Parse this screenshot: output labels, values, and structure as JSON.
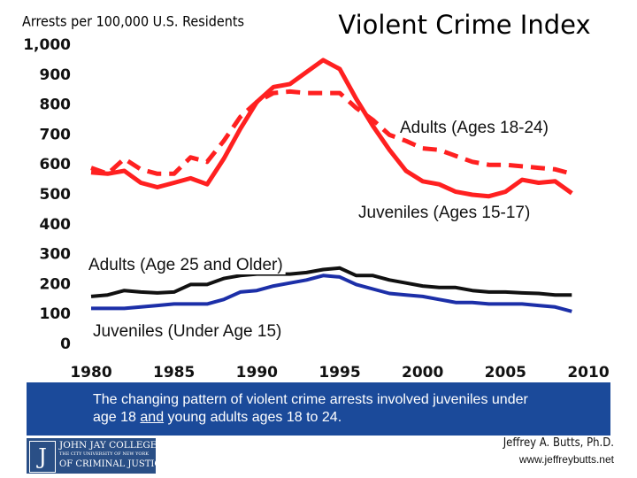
{
  "chart_data": {
    "type": "line",
    "title": "Violent Crime Index",
    "y_label": "Arrests per 100,000 U.S. Residents",
    "x": [
      1980,
      1981,
      1982,
      1983,
      1984,
      1985,
      1986,
      1987,
      1988,
      1989,
      1990,
      1991,
      1992,
      1993,
      1994,
      1995,
      1996,
      1997,
      1998,
      1999,
      2000,
      2001,
      2002,
      2003,
      2004,
      2005,
      2006,
      2007,
      2008,
      2009
    ],
    "xlim": [
      1980,
      2010
    ],
    "xticks": [
      1980,
      1985,
      1990,
      1995,
      2000,
      2005,
      2010
    ],
    "ylim": [
      0,
      1000
    ],
    "yticks": [
      0,
      100,
      200,
      300,
      400,
      500,
      600,
      700,
      800,
      900,
      {
        "value": 1000,
        "label": "1,000"
      }
    ],
    "series": [
      {
        "name": "Juveniles (Ages 15-17)",
        "color": "#ff2020",
        "dashed": false,
        "values": [
          575,
          570,
          580,
          540,
          525,
          540,
          555,
          535,
          620,
          720,
          810,
          860,
          870,
          910,
          950,
          920,
          820,
          730,
          650,
          580,
          545,
          535,
          510,
          500,
          495,
          510,
          550,
          540,
          545,
          505
        ]
      },
      {
        "name": "Adults (Ages 18-24)",
        "color": "#ff2020",
        "dashed": true,
        "values": [
          590,
          570,
          620,
          585,
          570,
          570,
          625,
          610,
          680,
          760,
          810,
          840,
          845,
          840,
          840,
          840,
          790,
          750,
          700,
          680,
          655,
          650,
          630,
          610,
          600,
          600,
          595,
          590,
          585,
          570
        ]
      },
      {
        "name": "Adults (Age 25 and Older)",
        "color": "#111111",
        "dashed": false,
        "values": [
          160,
          165,
          180,
          175,
          172,
          175,
          200,
          200,
          220,
          230,
          235,
          235,
          235,
          240,
          250,
          255,
          230,
          230,
          215,
          205,
          195,
          190,
          190,
          180,
          175,
          175,
          172,
          170,
          165,
          165
        ]
      },
      {
        "name": "Juveniles (Under Age 15)",
        "color": "#1c2fa8",
        "dashed": false,
        "values": [
          120,
          120,
          120,
          125,
          130,
          135,
          135,
          135,
          150,
          175,
          180,
          195,
          205,
          215,
          230,
          225,
          200,
          185,
          170,
          165,
          160,
          150,
          140,
          140,
          135,
          135,
          135,
          130,
          125,
          110
        ]
      }
    ]
  },
  "slide": {
    "caption_before": "The changing pattern of violent crime arrests involved juveniles under age 18 ",
    "caption_underlined": "and",
    "caption_after": " young adults ages 18 to 24.",
    "logo_line1": "JOHN JAY COLLEGE",
    "logo_line2": "THE CITY UNIVERSITY OF NEW YORK",
    "logo_line3": "OF CRIMINAL JUSTICE",
    "author": "Jeffrey A. Butts, Ph.D.",
    "url": "www.jeffreybutts.net"
  }
}
